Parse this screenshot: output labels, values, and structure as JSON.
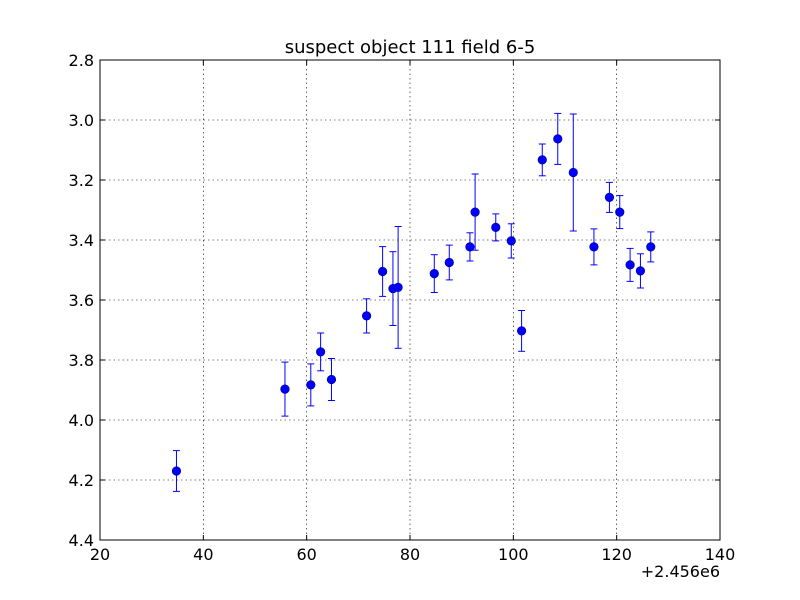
{
  "chart_data": {
    "type": "scatter",
    "title": "suspect object 111 field 6-5",
    "xlabel": "",
    "ylabel": "",
    "x_offset_label": "+2.456e6",
    "xlim": [
      20,
      140
    ],
    "ylim": [
      2.8,
      4.4
    ],
    "y_inverted": true,
    "x_ticks": [
      20,
      40,
      60,
      80,
      100,
      120,
      140
    ],
    "x_tick_labels": [
      "20",
      "40",
      "60",
      "80",
      "100",
      "120",
      "140"
    ],
    "y_ticks": [
      2.8,
      3.0,
      3.2,
      3.4,
      3.6,
      3.8,
      4.0,
      4.2,
      4.4
    ],
    "y_tick_labels": [
      "2.8",
      "3.0",
      "3.2",
      "3.4",
      "3.6",
      "3.8",
      "4.0",
      "4.2",
      "4.4"
    ],
    "grid": true,
    "color": "#0000ff",
    "series": [
      {
        "points": [
          {
            "x": 34.8,
            "y": 4.17,
            "err": 0.068
          },
          {
            "x": 55.8,
            "y": 3.897,
            "err": 0.09
          },
          {
            "x": 60.8,
            "y": 3.883,
            "err": 0.07
          },
          {
            "x": 62.7,
            "y": 3.773,
            "err": 0.063
          },
          {
            "x": 64.8,
            "y": 3.865,
            "err": 0.07
          },
          {
            "x": 71.6,
            "y": 3.653,
            "err": 0.057
          },
          {
            "x": 74.7,
            "y": 3.505,
            "err": 0.083
          },
          {
            "x": 76.7,
            "y": 3.562,
            "err": 0.123
          },
          {
            "x": 77.7,
            "y": 3.558,
            "err": 0.203
          },
          {
            "x": 84.7,
            "y": 3.512,
            "err": 0.063
          },
          {
            "x": 87.6,
            "y": 3.475,
            "err": 0.058
          },
          {
            "x": 91.6,
            "y": 3.423,
            "err": 0.047
          },
          {
            "x": 92.6,
            "y": 3.307,
            "err": 0.127
          },
          {
            "x": 96.6,
            "y": 3.358,
            "err": 0.045
          },
          {
            "x": 99.6,
            "y": 3.403,
            "err": 0.057
          },
          {
            "x": 101.6,
            "y": 3.703,
            "err": 0.068
          },
          {
            "x": 105.6,
            "y": 3.133,
            "err": 0.053
          },
          {
            "x": 108.6,
            "y": 3.063,
            "err": 0.085
          },
          {
            "x": 111.6,
            "y": 3.175,
            "err": 0.195
          },
          {
            "x": 115.6,
            "y": 3.423,
            "err": 0.06
          },
          {
            "x": 118.6,
            "y": 3.258,
            "err": 0.05
          },
          {
            "x": 120.6,
            "y": 3.307,
            "err": 0.055
          },
          {
            "x": 122.6,
            "y": 3.483,
            "err": 0.055
          },
          {
            "x": 124.6,
            "y": 3.503,
            "err": 0.057
          },
          {
            "x": 126.6,
            "y": 3.423,
            "err": 0.05
          }
        ]
      }
    ]
  }
}
